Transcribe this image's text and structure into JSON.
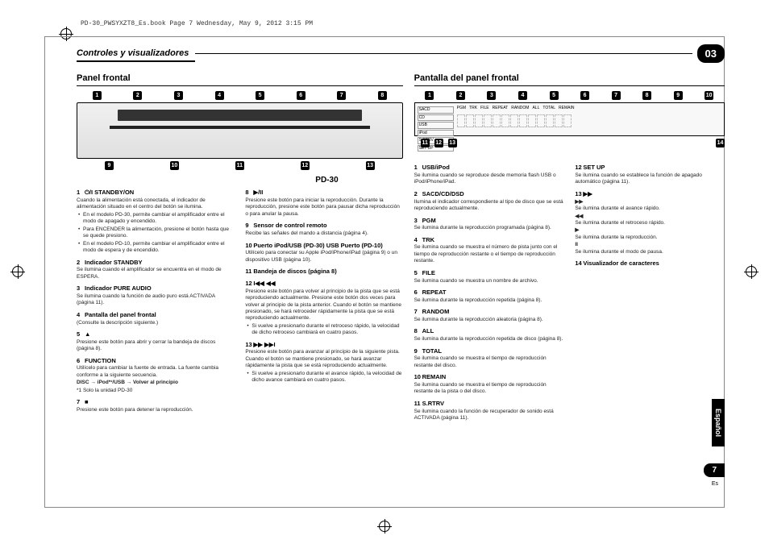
{
  "meta": {
    "header": "PD-30_PWSYXZT8_Es.book  Page 7  Wednesday, May 9, 2012  3:15 PM"
  },
  "section": {
    "title": "Controles y visualizadores",
    "chapter": "03"
  },
  "left": {
    "heading": "Panel frontal",
    "model": "PD-30",
    "calloutsTop": [
      "1",
      "2",
      "3",
      "4",
      "5",
      "6",
      "7",
      "8"
    ],
    "calloutsBottom": [
      "9",
      "10",
      "11",
      "12",
      "13"
    ],
    "items1": [
      {
        "n": "1",
        "t": "⏻/I STANDBY/ON",
        "d": "Cuando la alimentación está conectada, el indicador de alimentación situado en el centro del botón se ilumina.",
        "bullets": [
          "En el modelo PD-30, permite cambiar el amplificador entre el modo de apagado y encendido.",
          "Para ENCENDER la alimentación, presione el botón hasta que se quede presiono.",
          "En el modelo PD-10, permite cambiar el amplificador entre el modo de espera y de encendido."
        ]
      },
      {
        "n": "2",
        "t": "Indicador STANDBY",
        "d": "Se ilumina cuando el amplificador se encuentra en el modo de ESPERA."
      },
      {
        "n": "3",
        "t": "Indicador PURE AUDIO",
        "d": "Se ilumina cuando la función de audio puro está ACTIVADA (página 11)."
      },
      {
        "n": "4",
        "t": "Pantalla del panel frontal",
        "d": "(Consulte la descripción siguiente.)"
      },
      {
        "n": "5",
        "t": "▲",
        "d": "Presione este botón para abrir y cerrar la bandeja de discos (página 8)."
      },
      {
        "n": "6",
        "t": "FUNCTION",
        "d": "Utilícelo para cambiar la fuente de entrada. La fuente cambia conforme a la siguiente secuencia.",
        "extra": "DISC → iPod*¹/USB → Volver al principio",
        "note": "*1 Solo la unidad PD-30"
      },
      {
        "n": "7",
        "t": "■",
        "d": "Presione este botón para detener la reproducción."
      }
    ],
    "items2": [
      {
        "n": "8",
        "t": "▶/II",
        "d": "Presione este botón para iniciar la reproducción. Durante la reproducción, presione este botón para pausar dicha reproducción o para anular la pausa."
      },
      {
        "n": "9",
        "t": "Sensor de control remoto",
        "d": "Recibe las señales del mando a distancia (página 4)."
      },
      {
        "n": "10",
        "t": "Puerto iPod/USB (PD-30) USB Puerto (PD-10)",
        "d": "Utilícelo para conectar su Apple iPod/iPhone/iPad (página 9) o un dispositivo USB (página 10)."
      },
      {
        "n": "11",
        "t": "Bandeja de discos (página 8)"
      },
      {
        "n": "12",
        "t": "I◀◀ ◀◀",
        "d": "Presione este botón para volver al principio de la pista que se está reproduciendo actualmente. Presione este botón dos veces para volver al principio de la pista anterior. Cuando el botón se mantiene presionado, se hará retroceder rápidamente la pista que se está reproduciendo actualmente.",
        "bullets": [
          "Si vuelve a presionarlo durante el retroceso rápido, la velocidad de dicho retroceso cambiará en cuatro pasos."
        ]
      },
      {
        "n": "13",
        "t": "▶▶ ▶▶I",
        "d": "Presione este botón para avanzar al principio de la siguiente pista. Cuando el botón se mantiene presionado, se hará avanzar rápidamente la pista que se está reproduciendo actualmente.",
        "bullets": [
          "Si vuelve a presionarlo durante el avance rápido, la velocidad de dicho avance cambiará en cuatro pasos."
        ]
      }
    ]
  },
  "right": {
    "heading": "Pantalla del panel frontal",
    "calloutsTop": [
      "1",
      "2",
      "3",
      "4",
      "5",
      "6",
      "7",
      "8",
      "9",
      "10"
    ],
    "calloutsBottom": [
      "11",
      "12",
      "13",
      "14"
    ],
    "dispLeft": [
      "SACD",
      "CD",
      "USB",
      "iPod",
      "S.RTRV",
      "SET UP"
    ],
    "dispTop": [
      "PGM",
      "TRK",
      "FILE",
      "REPEAT",
      "RANDOM",
      "ALL",
      "TOTAL",
      "REMAIN"
    ],
    "items1": [
      {
        "n": "1",
        "t": "USB/iPod",
        "d": "Se ilumina cuando se reproduce desde memoria flash USB o iPod/iPhone/iPad."
      },
      {
        "n": "2",
        "t": "SACD/CD/DSD",
        "d": "Ilumina el indicador correspondiente al tipo de disco que se está reproduciendo actualmente."
      },
      {
        "n": "3",
        "t": "PGM",
        "d": "Se ilumina durante la reproducción programada (página 8)."
      },
      {
        "n": "4",
        "t": "TRK",
        "d": "Se ilumina cuando se muestra el número de pista junto con el tiempo de reproducción restante o el tiempo de reproducción restante."
      },
      {
        "n": "5",
        "t": "FILE",
        "d": "Se ilumina cuando se muestra un nombre de archivo."
      },
      {
        "n": "6",
        "t": "REPEAT",
        "d": "Se ilumina durante la reproducción repetida (página 8)."
      },
      {
        "n": "7",
        "t": "RANDOM",
        "d": "Se ilumina durante la reproducción aleatoria (página 8)."
      },
      {
        "n": "8",
        "t": "ALL",
        "d": "Se ilumina durante la reproducción repetida de disco (página 8)."
      },
      {
        "n": "9",
        "t": "TOTAL",
        "d": "Se ilumina cuando se muestra el tiempo de reproducción restante del disco."
      },
      {
        "n": "10",
        "t": "REMAIN",
        "d": "Se ilumina cuando se muestra el tiempo de reproducción restante de la pista o del disco."
      },
      {
        "n": "11",
        "t": "S.RTRV",
        "d": "Se ilumina cuando la función de recuperador de sonido está ACTIVADA (página 11)."
      }
    ],
    "items2": [
      {
        "n": "12",
        "t": "SET UP",
        "d": "Se ilumina cuando se establece la función de apagado automático (página 11)."
      },
      {
        "n": "13",
        "t": "▶▶",
        "sub": [
          {
            "icon": "▶▶",
            "d": "Se ilumina durante el avance rápido."
          },
          {
            "icon": "◀◀",
            "d": "Se ilumina durante el retroceso rápido."
          },
          {
            "icon": "▶",
            "d": "Se ilumina durante la reproducción."
          },
          {
            "icon": "II",
            "d": "Se ilumina durante el modo de pausa."
          }
        ]
      },
      {
        "n": "14",
        "t": "Visualizador de caracteres"
      }
    ]
  },
  "footer": {
    "lang": "Español",
    "page": "7",
    "langShort": "Es"
  }
}
